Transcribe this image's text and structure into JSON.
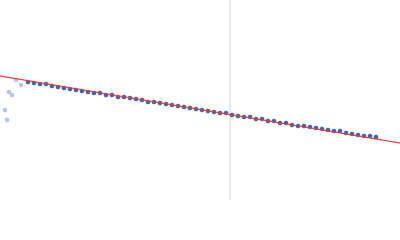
{
  "chart_data": {
    "type": "scatter",
    "xlim": [
      0,
      400
    ],
    "ylim": [
      0,
      200
    ],
    "vline_x": 230,
    "vline_color": "#c8d0e4",
    "series": [
      {
        "color": "#b8c6e0",
        "mode": "markers",
        "x": [
          5,
          7,
          9,
          12,
          16,
          21
        ],
        "values": [
          90,
          80,
          108,
          105,
          120,
          115
        ]
      },
      {
        "color": "#3a64b4",
        "mode": "markers",
        "x": [
          28,
          34,
          40,
          46,
          52,
          58,
          64,
          70,
          76,
          82,
          88,
          94,
          100,
          106,
          112,
          118,
          124,
          130,
          136,
          142,
          148,
          154,
          160,
          166,
          172,
          178,
          184,
          190,
          196,
          202,
          208,
          214,
          220,
          226,
          232,
          238,
          244,
          250,
          256,
          262,
          268,
          274,
          280,
          286,
          292,
          298,
          304,
          310,
          316,
          322,
          328,
          334,
          340,
          346,
          352,
          358,
          364,
          370,
          376
        ],
        "values": [
          118,
          117,
          116,
          116,
          114,
          113,
          112,
          111,
          110,
          109,
          108,
          107,
          107,
          105,
          105,
          103,
          103,
          102,
          101,
          100,
          98,
          98,
          97,
          96,
          95,
          94,
          93,
          92,
          91,
          90,
          89,
          88,
          87,
          87,
          85,
          84,
          83,
          83,
          81,
          81,
          79,
          79,
          77,
          77,
          75,
          74,
          74,
          73,
          72,
          71,
          70,
          69,
          69,
          67,
          66,
          65,
          64,
          64,
          63
        ]
      },
      {
        "color": "#e0403a",
        "mode": "line",
        "x": [
          0,
          400
        ],
        "values": [
          124,
          57
        ]
      }
    ]
  }
}
